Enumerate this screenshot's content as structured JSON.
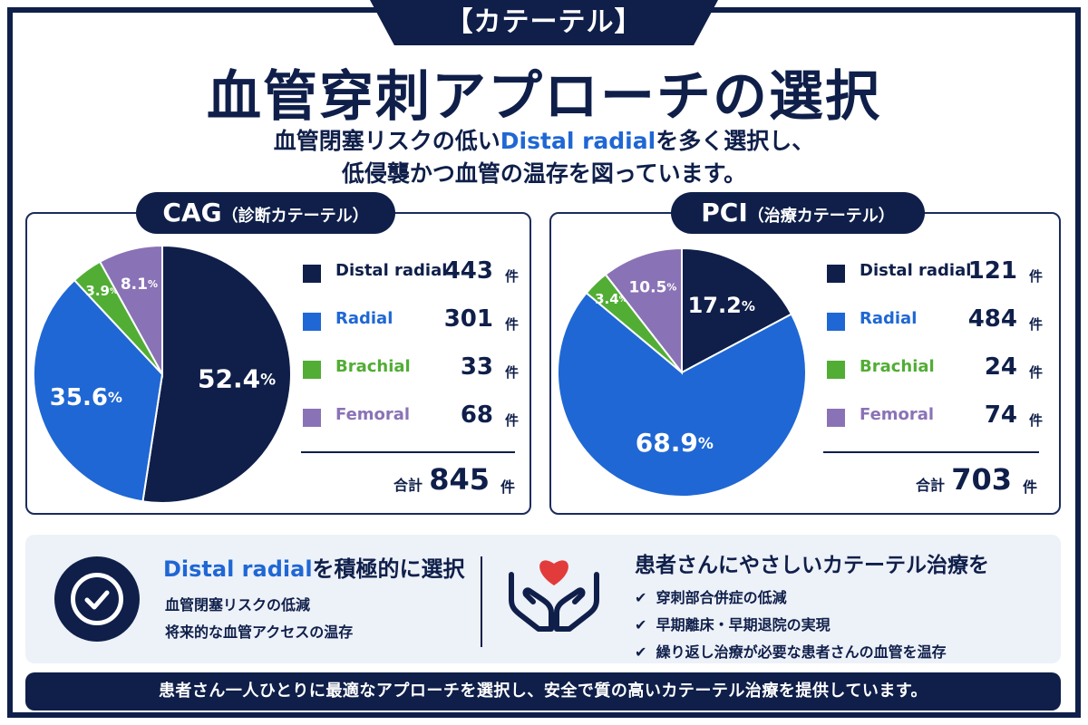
{
  "header": {
    "tag": "【カテーテル】",
    "title": "血管穿刺アプローチの選択",
    "subtitle_line1_pre": "血管閉塞リスクの低い",
    "subtitle_line1_hl": "Distal radial",
    "subtitle_line1_post": "を多く選択し、",
    "subtitle_line2": "低侵襲かつ血管の温存を図っています。"
  },
  "colors": {
    "navy": "#0f1f4a",
    "distal_radial": "#0f1f4a",
    "radial": "#1f67d4",
    "brachial": "#52ad35",
    "femoral": "#8a72b6"
  },
  "chart_data": [
    {
      "type": "pie",
      "title": "CAG",
      "subtitle": "（診断カテーテル）",
      "categories": [
        "Distal radial",
        "Radial",
        "Brachial",
        "Femoral"
      ],
      "values": [
        443,
        301,
        33,
        68
      ],
      "percent_labels": [
        "52.4",
        "35.6",
        "3.9",
        "8.1"
      ],
      "percent_unit": "%",
      "count_unit": "件",
      "total_label": "合計",
      "total": 845
    },
    {
      "type": "pie",
      "title": "PCI",
      "subtitle": "（治療カテーテル）",
      "categories": [
        "Distal radial",
        "Radial",
        "Brachial",
        "Femoral"
      ],
      "values": [
        121,
        484,
        24,
        74
      ],
      "percent_labels": [
        "17.2",
        "68.9",
        "3.4",
        "10.5"
      ],
      "percent_unit": "%",
      "count_unit": "件",
      "total_label": "合計",
      "total": 703
    }
  ],
  "info": {
    "left_head_hl": "Distal radial",
    "left_head_post": "を積極的に選択",
    "left_lines": [
      "血管閉塞リスクの低減",
      "将来的な血管アクセスの温存"
    ],
    "right_head": "患者さんにやさしいカテーテル治療を",
    "right_bullets": [
      "穿刺部合併症の低減",
      "早期離床・早期退院の実現",
      "繰り返し治療が必要な患者さんの血管を温存"
    ],
    "check_icon": "check-circle-icon",
    "hands_icon": "hands-heart-icon"
  },
  "footer": {
    "text": "患者さん一人ひとりに最適なアプローチを選択し、安全で質の高いカテーテル治療を提供しています。"
  }
}
